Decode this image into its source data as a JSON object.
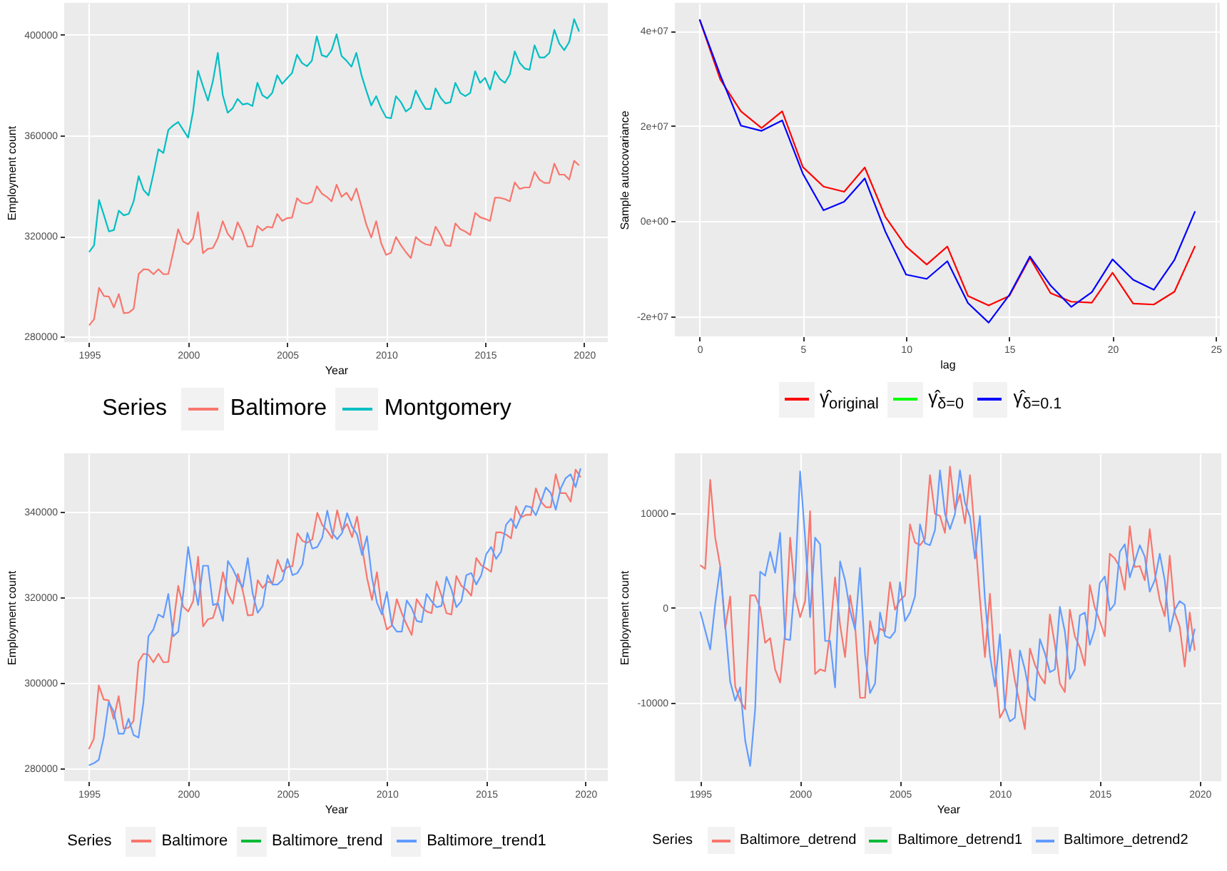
{
  "chart_data": [
    {
      "type": "line",
      "xlabel": "Year",
      "ylabel": "Employment count",
      "legend_title": "Series",
      "legend": "bottom",
      "grid": true,
      "x": [
        1995,
        1995.25,
        1995.5,
        1995.75,
        1996,
        1996.25,
        1996.5,
        1996.75,
        1997,
        1997.25,
        1997.5,
        1997.75,
        1998,
        1998.25,
        1998.5,
        1998.75,
        1999,
        1999.25,
        1999.5,
        1999.75,
        2000,
        2000.25,
        2000.5,
        2000.75,
        2001,
        2001.25,
        2001.5,
        2001.75,
        2002,
        2002.25,
        2002.5,
        2002.75,
        2003,
        2003.25,
        2003.5,
        2003.75,
        2004,
        2004.25,
        2004.5,
        2004.75,
        2005,
        2005.25,
        2005.5,
        2005.75,
        2006,
        2006.25,
        2006.5,
        2006.75,
        2007,
        2007.25,
        2007.5,
        2007.75,
        2008,
        2008.25,
        2008.5,
        2008.75,
        2009,
        2009.25,
        2009.5,
        2009.75,
        2010,
        2010.25,
        2010.5,
        2010.75,
        2011,
        2011.25,
        2011.5,
        2011.75,
        2012,
        2012.25,
        2012.5,
        2012.75,
        2013,
        2013.25,
        2013.5,
        2013.75,
        2014,
        2014.25,
        2014.5,
        2014.75,
        2015,
        2015.25,
        2015.5,
        2015.75,
        2016,
        2016.25,
        2016.5,
        2016.75,
        2017,
        2017.25,
        2017.5,
        2017.75,
        2018,
        2018.25,
        2018.5,
        2018.75,
        2019,
        2019.25,
        2019.5,
        2019.75
      ],
      "xlim": [
        1993.74,
        2021.2
      ],
      "xticks": [
        1995,
        2000,
        2005,
        2010,
        2015,
        2020
      ],
      "ylim": [
        277800,
        412700
      ],
      "yticks": [
        280000,
        320000,
        360000,
        400000
      ],
      "series": [
        {
          "name": "Baltimore",
          "color": "#f8766d",
          "values": [
            284500,
            286900,
            299400,
            296100,
            295900,
            291600,
            296900,
            289300,
            289500,
            291100,
            304900,
            306800,
            306600,
            304800,
            306800,
            304800,
            304900,
            313600,
            322700,
            317800,
            316700,
            319100,
            329500,
            313200,
            314900,
            315200,
            319100,
            325900,
            320900,
            318500,
            325500,
            321500,
            315800,
            315900,
            324000,
            322200,
            323700,
            323300,
            328800,
            326000,
            327100,
            327300,
            335000,
            333200,
            332800,
            333600,
            339800,
            336900,
            335600,
            333800,
            340400,
            335600,
            337200,
            334100,
            338900,
            331900,
            324600,
            319400,
            325900,
            317200,
            312500,
            313400,
            319600,
            316300,
            313600,
            311200,
            319600,
            317800,
            316700,
            316300,
            323700,
            320400,
            316300,
            316000,
            325000,
            322700,
            321800,
            320400,
            329200,
            327500,
            326800,
            326000,
            335200,
            335200,
            334700,
            333800,
            341300,
            338700,
            339300,
            339300,
            345500,
            342400,
            341100,
            341100,
            348800,
            344400,
            344400,
            342400,
            349900,
            348100
          ]
        },
        {
          "name": "Montgomery",
          "color": "#00bfc4",
          "values": [
            313600,
            316300,
            334300,
            328200,
            321800,
            322400,
            330100,
            328200,
            328800,
            333800,
            343800,
            338300,
            336100,
            344800,
            354500,
            353000,
            362200,
            364000,
            365300,
            362200,
            359100,
            369500,
            385700,
            379600,
            373800,
            381500,
            392800,
            376000,
            369000,
            370800,
            374500,
            372300,
            372700,
            371700,
            380900,
            376000,
            374700,
            376900,
            383900,
            380500,
            382700,
            384800,
            392100,
            388800,
            387500,
            389700,
            399400,
            391900,
            391200,
            393900,
            400200,
            391600,
            389700,
            387300,
            392800,
            384200,
            377800,
            371900,
            375600,
            370800,
            367200,
            366800,
            375600,
            373200,
            369500,
            371000,
            377800,
            373800,
            370500,
            370500,
            378700,
            375000,
            372700,
            373200,
            380900,
            376900,
            375600,
            376900,
            385500,
            380900,
            382900,
            378200,
            385500,
            382400,
            380900,
            384200,
            393400,
            388800,
            386600,
            386100,
            395800,
            391000,
            391000,
            392800,
            402000,
            396500,
            393900,
            397100,
            406200,
            401300
          ]
        }
      ]
    },
    {
      "type": "line",
      "xlabel": "lag",
      "ylabel": "Sample autocovariance",
      "legend": "bottom",
      "grid": true,
      "x": [
        0,
        1,
        2,
        3,
        4,
        5,
        6,
        7,
        8,
        9,
        10,
        11,
        12,
        13,
        14,
        15,
        16,
        17,
        18,
        19,
        20,
        21,
        22,
        23,
        24
      ],
      "xlim": [
        -1.2,
        25.2
      ],
      "xticks": [
        0,
        5,
        10,
        15,
        20,
        25
      ],
      "ylim": [
        -24200000,
        45900000
      ],
      "yticks": [
        {
          "value": -20000000,
          "label": "-2e+07"
        },
        {
          "value": 0,
          "label": "0e+00"
        },
        {
          "value": 20000000,
          "label": "2e+07"
        },
        {
          "value": 40000000,
          "label": "4e+07"
        }
      ],
      "series": [
        {
          "name": "γ̂$_{original}$",
          "color": "#ff0000",
          "values": [
            42400000,
            29800000,
            23100000,
            19600000,
            23100000,
            11400000,
            7300000,
            6200000,
            11300000,
            900000,
            -5300000,
            -9100000,
            -5300000,
            -15700000,
            -17700000,
            -15700000,
            -7700000,
            -15100000,
            -16900000,
            -17100000,
            -10800000,
            -17300000,
            -17500000,
            -14800000,
            -5200000
          ]
        },
        {
          "name": "γ̂$_{δ=0}$",
          "color": "#00ff00",
          "values": [
            null,
            null,
            null,
            null,
            null,
            null,
            null,
            null,
            null,
            null,
            null,
            null,
            null,
            null,
            null,
            null,
            null,
            null,
            null,
            null,
            null,
            null,
            null,
            null,
            null
          ]
        },
        {
          "name": "γ̂$_{δ=0.1}$",
          "color": "#0000ff",
          "values": [
            42400000,
            30700000,
            20100000,
            19000000,
            21200000,
            10000000,
            2300000,
            4100000,
            9000000,
            -2200000,
            -11200000,
            -12100000,
            -8400000,
            -17200000,
            -21300000,
            -15500000,
            -7400000,
            -13500000,
            -18000000,
            -14900000,
            -8000000,
            -12300000,
            -14400000,
            -8100000,
            2100000
          ]
        }
      ]
    },
    {
      "type": "line",
      "xlabel": "Year",
      "ylabel": "Employment count",
      "legend_title": "Series",
      "legend": "bottom",
      "grid": true,
      "x": [
        1995,
        1995.25,
        1995.5,
        1995.75,
        1996,
        1996.25,
        1996.5,
        1996.75,
        1997,
        1997.25,
        1997.5,
        1997.75,
        1998,
        1998.25,
        1998.5,
        1998.75,
        1999,
        1999.25,
        1999.5,
        1999.75,
        2000,
        2000.25,
        2000.5,
        2000.75,
        2001,
        2001.25,
        2001.5,
        2001.75,
        2002,
        2002.25,
        2002.5,
        2002.75,
        2003,
        2003.25,
        2003.5,
        2003.75,
        2004,
        2004.25,
        2004.5,
        2004.75,
        2005,
        2005.25,
        2005.5,
        2005.75,
        2006,
        2006.25,
        2006.5,
        2006.75,
        2007,
        2007.25,
        2007.5,
        2007.75,
        2008,
        2008.25,
        2008.5,
        2008.75,
        2009,
        2009.25,
        2009.5,
        2009.75,
        2010,
        2010.25,
        2010.5,
        2010.75,
        2011,
        2011.25,
        2011.5,
        2011.75,
        2012,
        2012.25,
        2012.5,
        2012.75,
        2013,
        2013.25,
        2013.5,
        2013.75,
        2014,
        2014.25,
        2014.5,
        2014.75,
        2015,
        2015.25,
        2015.5,
        2015.75,
        2016,
        2016.25,
        2016.5,
        2016.75,
        2017,
        2017.25,
        2017.5,
        2017.75,
        2018,
        2018.25,
        2018.5,
        2018.75,
        2019,
        2019.25,
        2019.5,
        2019.75
      ],
      "xlim": [
        1993.76,
        2021.12
      ],
      "xticks": [
        1995,
        2000,
        2005,
        2010,
        2015,
        2020
      ],
      "ylim": [
        277000,
        353700
      ],
      "yticks": [
        280000,
        300000,
        320000,
        340000
      ],
      "series": [
        {
          "name": "Baltimore",
          "color": "#f8766d",
          "values": [
            284500,
            286900,
            299400,
            296100,
            295900,
            291600,
            296900,
            289300,
            289500,
            291100,
            304900,
            306800,
            306600,
            304800,
            306800,
            304800,
            304900,
            313600,
            322700,
            317800,
            316700,
            319100,
            329500,
            313200,
            314900,
            315200,
            319100,
            325900,
            320900,
            318500,
            325500,
            321500,
            315800,
            315900,
            324000,
            322200,
            323700,
            323300,
            328800,
            326000,
            327100,
            327300,
            335000,
            333200,
            332800,
            333600,
            339800,
            336900,
            335600,
            333800,
            340400,
            335600,
            337200,
            334100,
            338900,
            331900,
            324600,
            319400,
            325900,
            317200,
            312500,
            313400,
            319600,
            316300,
            313600,
            311200,
            319600,
            317800,
            316700,
            316300,
            323700,
            320400,
            316300,
            316000,
            325000,
            322700,
            321800,
            320400,
            329200,
            327500,
            326800,
            326000,
            335200,
            335200,
            334700,
            333800,
            341300,
            338700,
            339300,
            339300,
            345500,
            342400,
            341100,
            341100,
            348800,
            344400,
            344400,
            342400,
            349900,
            348100
          ]
        },
        {
          "name": "Baltimore_trend",
          "color": "#00ba38",
          "values": [
            null,
            null,
            null,
            null,
            null,
            null,
            null,
            null,
            null,
            null,
            null,
            null,
            null,
            null,
            null,
            null,
            null,
            null,
            null,
            null,
            null,
            null,
            null,
            null,
            null,
            null,
            null,
            null,
            null,
            null,
            null,
            null,
            null,
            null,
            null,
            null,
            null,
            null,
            null,
            null,
            null,
            null,
            null,
            null,
            null,
            null,
            null,
            null,
            null,
            null,
            null,
            null,
            null,
            null,
            null,
            null,
            null,
            null,
            null,
            null,
            null,
            null,
            null,
            null,
            null,
            null,
            null,
            null,
            null,
            null,
            null,
            null,
            null,
            null,
            null,
            null,
            null,
            null,
            null,
            null,
            null,
            null,
            null,
            null,
            null,
            null,
            null,
            null,
            null,
            null,
            null,
            null,
            null,
            null,
            null,
            null,
            null,
            null,
            null,
            null
          ]
        },
        {
          "name": "Baltimore_trend1",
          "color": "#619cff",
          "values": [
            280700,
            281200,
            282000,
            287200,
            295500,
            293300,
            288100,
            288100,
            291600,
            287800,
            287200,
            295500,
            310900,
            312500,
            316000,
            315300,
            320800,
            310900,
            312000,
            320800,
            331800,
            324100,
            318200,
            327400,
            327400,
            318200,
            318600,
            314500,
            328500,
            326600,
            324100,
            322400,
            329200,
            320800,
            316400,
            318000,
            325200,
            323000,
            323000,
            324100,
            329000,
            325200,
            325700,
            327700,
            335100,
            331400,
            331800,
            334000,
            340300,
            335100,
            333600,
            335100,
            339700,
            336500,
            334700,
            329900,
            334300,
            324600,
            318800,
            316000,
            321300,
            313600,
            312000,
            312000,
            319300,
            317500,
            314500,
            314200,
            320800,
            319100,
            317700,
            318000,
            324800,
            321900,
            317700,
            319100,
            325200,
            325700,
            323000,
            325200,
            330100,
            331800,
            329000,
            330700,
            337000,
            338400,
            336200,
            338900,
            341400,
            341100,
            339200,
            342200,
            345700,
            344400,
            340500,
            345500,
            347900,
            348800,
            345800,
            350200
          ]
        }
      ]
    },
    {
      "type": "line",
      "xlabel": "Year",
      "ylabel": "Employment count",
      "legend_title": "Series",
      "legend": "bottom",
      "grid": true,
      "x": [
        1995,
        1995.25,
        1995.5,
        1995.75,
        1996,
        1996.25,
        1996.5,
        1996.75,
        1997,
        1997.25,
        1997.5,
        1997.75,
        1998,
        1998.25,
        1998.5,
        1998.75,
        1999,
        1999.25,
        1999.5,
        1999.75,
        2000,
        2000.25,
        2000.5,
        2000.75,
        2001,
        2001.25,
        2001.5,
        2001.75,
        2002,
        2002.25,
        2002.5,
        2002.75,
        2003,
        2003.25,
        2003.5,
        2003.75,
        2004,
        2004.25,
        2004.5,
        2004.75,
        2005,
        2005.25,
        2005.5,
        2005.75,
        2006,
        2006.25,
        2006.5,
        2006.75,
        2007,
        2007.25,
        2007.5,
        2007.75,
        2008,
        2008.25,
        2008.5,
        2008.75,
        2009,
        2009.25,
        2009.5,
        2009.75,
        2010,
        2010.25,
        2010.5,
        2010.75,
        2011,
        2011.25,
        2011.5,
        2011.75,
        2012,
        2012.25,
        2012.5,
        2012.75,
        2013,
        2013.25,
        2013.5,
        2013.75,
        2014,
        2014.25,
        2014.5,
        2014.75,
        2015,
        2015.25,
        2015.5,
        2015.75,
        2016,
        2016.25,
        2016.5,
        2016.75,
        2017,
        2017.25,
        2017.5,
        2017.75,
        2018,
        2018.25,
        2018.5,
        2018.75,
        2019,
        2019.25,
        2019.5,
        2019.75
      ],
      "xlim": [
        1993.73,
        2021.08
      ],
      "xticks": [
        1995,
        2000,
        2005,
        2010,
        2015,
        2020
      ],
      "ylim": [
        -18300,
        16300
      ],
      "yticks": [
        -10000,
        0,
        10000
      ],
      "series": [
        {
          "name": "Baltimore_detrend",
          "color": "#f8766d",
          "values": [
            4500,
            4100,
            13500,
            7400,
            4400,
            -2200,
            1200,
            -8300,
            -9800,
            -10700,
            1300,
            1300,
            0,
            -3700,
            -3200,
            -6500,
            -7900,
            -2500,
            7400,
            1300,
            -1000,
            700,
            10200,
            -7000,
            -6500,
            -6700,
            -2500,
            3200,
            -1800,
            -5200,
            1300,
            -1800,
            -9500,
            -9500,
            -1400,
            -3800,
            -2200,
            -2500,
            2700,
            -200,
            800,
            1300,
            8800,
            6900,
            6600,
            7300,
            14000,
            9900,
            9700,
            7900,
            14900,
            10300,
            12000,
            8900,
            14000,
            7800,
            900,
            -5200,
            1500,
            -6100,
            -11600,
            -10600,
            -4400,
            -7700,
            -10200,
            -12800,
            -4300,
            -6000,
            -7200,
            -8000,
            -700,
            -3900,
            -8000,
            -8900,
            -200,
            -3000,
            -4200,
            -6100,
            2400,
            0,
            -1400,
            -3000,
            5700,
            5200,
            4300,
            1900,
            8600,
            4300,
            4400,
            2900,
            8300,
            3700,
            800,
            -900,
            5500,
            -500,
            -2000,
            -6200,
            -500,
            -4500
          ]
        },
        {
          "name": "Baltimore_detrend1",
          "color": "#00ba38",
          "values": [
            null,
            null,
            null,
            null,
            null,
            null,
            null,
            null,
            null,
            null,
            null,
            null,
            null,
            null,
            null,
            null,
            null,
            null,
            null,
            null,
            null,
            null,
            null,
            null,
            null,
            null,
            null,
            null,
            null,
            null,
            null,
            null,
            null,
            null,
            null,
            null,
            null,
            null,
            null,
            null,
            null,
            null,
            null,
            null,
            null,
            null,
            null,
            null,
            null,
            null,
            null,
            null,
            null,
            null,
            null,
            null,
            null,
            null,
            null,
            null,
            null,
            null,
            null,
            null,
            null,
            null,
            null,
            null,
            null,
            null,
            null,
            null,
            null,
            null,
            null,
            null,
            null,
            null,
            null,
            null,
            null,
            null,
            null,
            null,
            null,
            null,
            null,
            null,
            null,
            null,
            null,
            null,
            null,
            null,
            null,
            null,
            null,
            null,
            null,
            null
          ]
        },
        {
          "name": "Baltimore_detrend2",
          "color": "#619cff",
          "values": [
            -400,
            -2400,
            -4400,
            400,
            4300,
            -1800,
            -7800,
            -9800,
            -8400,
            -14000,
            -16700,
            -10700,
            3800,
            3400,
            5900,
            3700,
            7900,
            -3300,
            -3400,
            2900,
            14400,
            7400,
            -1000,
            7400,
            6700,
            -3500,
            -3500,
            -8400,
            4900,
            2900,
            -300,
            -2300,
            4200,
            -5000,
            -9000,
            -8000,
            -500,
            -3000,
            -3200,
            -2500,
            2700,
            -1400,
            -500,
            1200,
            8800,
            6800,
            6600,
            8200,
            14500,
            9900,
            8300,
            9900,
            14500,
            11100,
            9600,
            5200,
            9700,
            900,
            -5000,
            -8300,
            -2800,
            -10500,
            -12000,
            -11600,
            -4500,
            -6500,
            -9300,
            -9800,
            -3300,
            -4800,
            -6800,
            -6500,
            100,
            -2500,
            -7500,
            -6500,
            -800,
            -500,
            -3900,
            -2200,
            2600,
            3300,
            -300,
            400,
            5900,
            6700,
            3200,
            4900,
            6600,
            5400,
            1700,
            2900,
            5700,
            2900,
            -2500,
            -200,
            700,
            300,
            -4600,
            -2200
          ]
        }
      ]
    }
  ]
}
